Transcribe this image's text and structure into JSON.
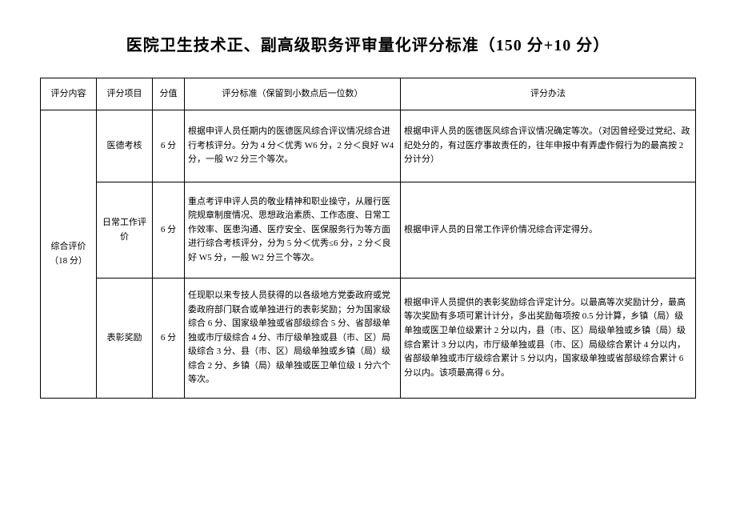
{
  "title": "医院卫生技术正、副高级职务评审量化评分标准（150 分+10 分）",
  "headers": {
    "content": "评分内容",
    "item": "评分项目",
    "score": "分值",
    "criteria": "评分标准（保留到小数点后一位数）",
    "method": "评分办法"
  },
  "group": {
    "label": "综合评价（18 分）"
  },
  "rows": [
    {
      "item": "医德考核",
      "score": "6 分",
      "criteria": "根据申评人员任期内的医德医风综合评议情况综合进行考核评分。分为 4 分＜优秀 W6 分，2 分＜良好 W4 分，一般 W2 分三个等次。",
      "method": "根据申评人员的医德医风综合评议情况确定等次。（对因曾经受过党纪、政纪处分的，有过医疗事故责任的，往年申报中有弄虚作假行为的最高按 2 分计分）"
    },
    {
      "item": "日常工作评价",
      "score": "6 分",
      "criteria": "重点考评申评人员的敬业精神和职业操守，从履行医院规章制度情况、思想政治素质、工作态度、日常工作效率、医患沟通、医疗安全、医保服务行为等方面进行综合考核评分，分为 5 分＜优秀≤6 分，2 分＜良好 W5 分，一般 W2 分三个等次。",
      "method": "根据申评人员的日常工作评价情况综合评定得分。"
    },
    {
      "item": "表彰奖励",
      "score": "6 分",
      "criteria": "任现职以来专技人员获得的以各级地方党委政府或党委政府部门联合或单独进行的表彰奖励；分为国家级综合 6 分、国家级单独或省部级综合 5 分、省部级单独或市厅级综合 4 分、市厅级单独或县（市、区）局级综合 3 分、县（市、区）局级单独或乡镇（局）级综合 2 分、乡镇（局）级单独或医卫单位级 1 分六个等次。",
      "method": "根据申评人员提供的表彰奖励综合评定计分。以最高等次奖励计分，最高等次奖励有多项可累计计分，多出奖励每项按 0.5 分计算，乡镇（局）级单独或医卫单位级累计 2 分以内，县（市、区）局级单独或乡镇（局）级综合累计 3 分以内，市厅级单独或县（市、区）局级综合累计 4 分以内，省部级单独或市厅级综合累计 5 分以内，国家级单独或省部级综合累计 6 分以内。该项最高得 6 分。"
    }
  ]
}
